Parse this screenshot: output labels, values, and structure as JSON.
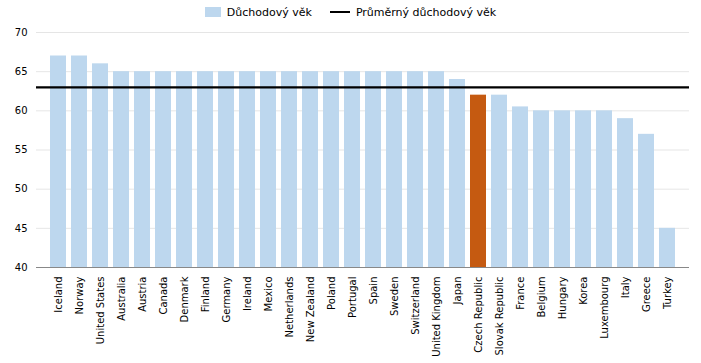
{
  "chart_data": {
    "type": "bar",
    "categories": [
      "Iceland",
      "Norway",
      "United States",
      "Australia",
      "Austria",
      "Canada",
      "Denmark",
      "Finland",
      "Germany",
      "Ireland",
      "Mexico",
      "Netherlands",
      "New Zealand",
      "Poland",
      "Portugal",
      "Spain",
      "Sweden",
      "Switzerland",
      "United Kingdom",
      "Japan",
      "Czech Republic",
      "Slovak Republic",
      "France",
      "Belgium",
      "Hungary",
      "Korea",
      "Luxembourg",
      "Italy",
      "Greece",
      "Turkey"
    ],
    "series": [
      {
        "name": "Důchodový věk",
        "color": "#BDD7EE",
        "values": [
          67,
          67,
          66,
          65,
          65,
          65,
          65,
          65,
          65,
          65,
          65,
          65,
          65,
          65,
          65,
          65,
          65,
          65,
          65,
          64,
          62,
          62,
          60.5,
          60,
          60,
          60,
          60,
          59,
          57,
          45
        ],
        "colors": [
          "#BDD7EE",
          "#BDD7EE",
          "#BDD7EE",
          "#BDD7EE",
          "#BDD7EE",
          "#BDD7EE",
          "#BDD7EE",
          "#BDD7EE",
          "#BDD7EE",
          "#BDD7EE",
          "#BDD7EE",
          "#BDD7EE",
          "#BDD7EE",
          "#BDD7EE",
          "#BDD7EE",
          "#BDD7EE",
          "#BDD7EE",
          "#BDD7EE",
          "#BDD7EE",
          "#BDD7EE",
          "#C55A11",
          "#BDD7EE",
          "#BDD7EE",
          "#BDD7EE",
          "#BDD7EE",
          "#BDD7EE",
          "#BDD7EE",
          "#BDD7EE",
          "#BDD7EE",
          "#BDD7EE"
        ]
      }
    ],
    "average_line": {
      "name": "Průměrný důchodový věk",
      "value": 63,
      "color": "#000000"
    },
    "ylim": [
      40,
      70
    ],
    "yticks": [
      40,
      45,
      50,
      55,
      60,
      65,
      70
    ],
    "grid": true,
    "legend": "top"
  }
}
